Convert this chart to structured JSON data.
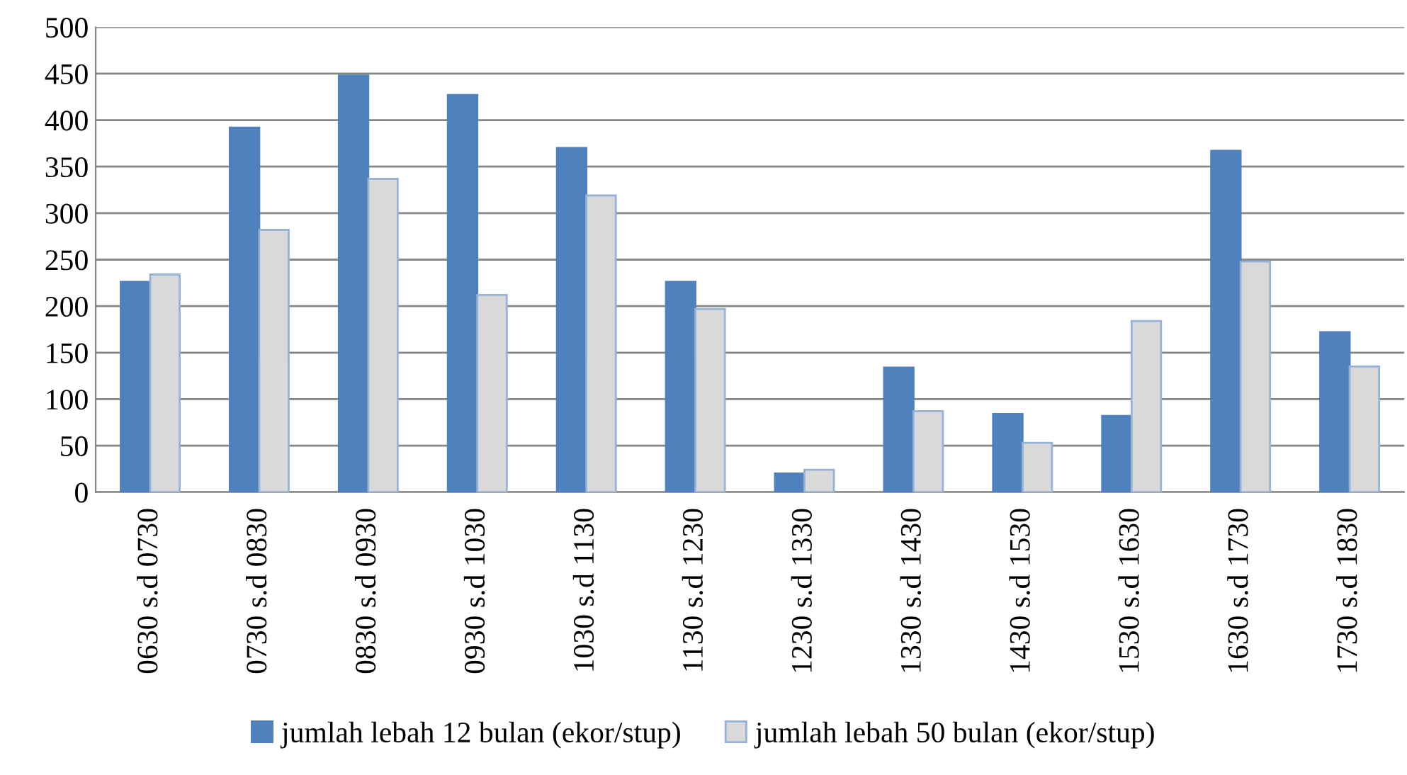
{
  "chart_data": {
    "type": "bar",
    "categories": [
      "0630 s.d 0730",
      "0730 s.d 0830",
      "0830 s.d 0930",
      "0930 s.d 1030",
      "1030 s.d 1130",
      "1130 s.d 1230",
      "1230 s.d 1330",
      "1330 s.d 1430",
      "1430 s.d 1530",
      "1530 s.d 1630",
      "1630 s.d 1730",
      "1730 s.d 1830"
    ],
    "series": [
      {
        "name": "jumlah lebah 12 bulan (ekor/stup)",
        "color": "#4f81bd",
        "values": [
          226,
          392,
          448,
          427,
          370,
          226,
          20,
          134,
          84,
          82,
          367,
          172
        ]
      },
      {
        "name": "jumlah lebah 50 bulan (ekor/stup)",
        "color": "#d9d9d9",
        "values": [
          234,
          282,
          337,
          212,
          319,
          197,
          24,
          87,
          53,
          184,
          248,
          135
        ]
      }
    ],
    "ylim": [
      0,
      500
    ],
    "yticks": [
      0,
      50,
      100,
      150,
      200,
      250,
      300,
      350,
      400,
      450,
      500
    ],
    "grid": "y",
    "legend": "bottom"
  }
}
